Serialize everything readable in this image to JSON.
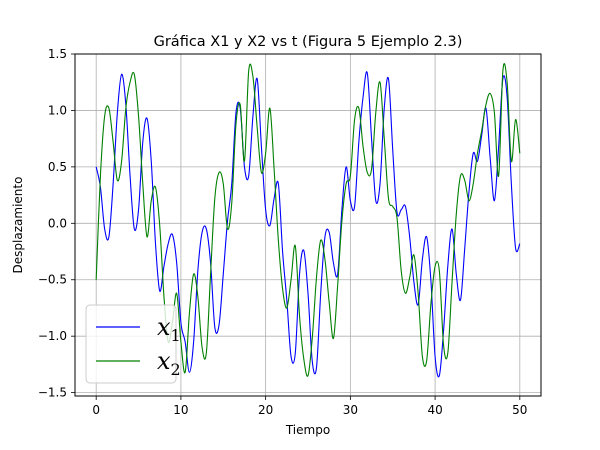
{
  "chart_data": {
    "type": "line",
    "title": "Gráfica X1 y X2 vs t (Figura 5 Ejemplo 2.3)",
    "xlabel": "Tiempo",
    "ylabel": "Desplazamiento",
    "xlim": [
      -2.5,
      52.5
    ],
    "ylim": [
      -1.53,
      1.5
    ],
    "x_ticks": [
      0,
      10,
      20,
      30,
      40,
      50
    ],
    "x_tick_labels": [
      "0",
      "10",
      "20",
      "30",
      "40",
      "50"
    ],
    "y_ticks": [
      -1.5,
      -1.0,
      -0.5,
      0.0,
      0.5,
      1.0,
      1.5
    ],
    "y_tick_labels": [
      "−1.5",
      "−1.0",
      "−0.5",
      "0.0",
      "0.5",
      "1.0",
      "1.5"
    ],
    "grid": true,
    "legend_position": "lower-left",
    "series": [
      {
        "name": "x1",
        "legend_main": "x",
        "legend_sub": "1",
        "color": "#0000ff",
        "x": [
          0,
          0.5,
          1,
          1.5,
          2,
          2.5,
          3,
          3.5,
          4,
          4.5,
          5,
          5.5,
          6,
          6.5,
          7,
          7.5,
          8,
          8.5,
          9,
          9.5,
          10,
          10.5,
          11,
          11.5,
          12,
          12.5,
          13,
          13.5,
          14,
          14.5,
          15,
          15.5,
          16,
          16.5,
          17,
          17.5,
          18,
          18.5,
          19,
          19.5,
          20,
          20.5,
          21,
          21.5,
          22,
          22.5,
          23,
          23.5,
          24,
          24.5,
          25,
          25.5,
          26,
          26.5,
          27,
          27.5,
          28,
          28.5,
          29,
          29.5,
          30,
          30.5,
          31,
          31.5,
          32,
          32.5,
          33,
          33.5,
          34,
          34.5,
          35,
          35.5,
          36,
          36.5,
          37,
          37.5,
          38,
          38.5,
          39,
          39.5,
          40,
          40.5,
          41,
          41.5,
          42,
          42.5,
          43,
          43.5,
          44,
          44.5,
          45,
          45.5,
          46,
          46.5,
          47,
          47.5,
          48,
          48.5,
          49,
          49.5,
          50
        ],
        "y": [
          0.5,
          0.32,
          -0.05,
          -0.12,
          0.35,
          0.98,
          1.32,
          1.05,
          0.42,
          -0.05,
          0.12,
          0.72,
          0.93,
          0.55,
          -0.18,
          -0.6,
          -0.38,
          -0.18,
          -0.1,
          -0.35,
          -0.88,
          -1.05,
          -1.32,
          -1.05,
          -0.42,
          -0.08,
          -0.05,
          -0.35,
          -0.92,
          -0.9,
          -0.45,
          0.02,
          0.35,
          0.98,
          1.02,
          0.5,
          0.42,
          0.95,
          1.28,
          0.68,
          0.12,
          -0.02,
          0.22,
          0.35,
          -0.25,
          -0.68,
          -1.18,
          -1.15,
          -0.45,
          -0.24,
          -0.62,
          -1.22,
          -1.28,
          -0.62,
          -0.12,
          -0.08,
          -0.35,
          -0.45,
          0.12,
          0.5,
          0.2,
          0.15,
          0.72,
          1.12,
          1.33,
          0.75,
          0.2,
          0.35,
          1.02,
          1.28,
          0.65,
          0.1,
          0.12,
          0.15,
          -0.12,
          -0.52,
          -0.72,
          -0.32,
          -0.12,
          -0.5,
          -1.18,
          -1.35,
          -0.95,
          -0.38,
          -0.05,
          -0.45,
          -0.68,
          -0.22,
          0.28,
          0.62,
          0.55,
          0.78,
          1.02,
          0.58,
          0.2,
          0.68,
          1.28,
          1.12,
          0.35,
          -0.22,
          -0.18
        ]
      },
      {
        "name": "x2",
        "legend_main": "x",
        "legend_sub": "2",
        "color": "#008000",
        "x": [
          0,
          0.5,
          1,
          1.5,
          2,
          2.5,
          3,
          3.5,
          4,
          4.5,
          5,
          5.5,
          6,
          6.5,
          7,
          7.5,
          8,
          8.5,
          9,
          9.5,
          10,
          10.5,
          11,
          11.5,
          12,
          12.5,
          13,
          13.5,
          14,
          14.5,
          15,
          15.5,
          16,
          16.5,
          17,
          17.5,
          18,
          18.5,
          19,
          19.5,
          20,
          20.5,
          21,
          21.5,
          22,
          22.5,
          23,
          23.5,
          24,
          24.5,
          25,
          25.5,
          26,
          26.5,
          27,
          27.5,
          28,
          28.5,
          29,
          29.5,
          30,
          30.5,
          31,
          31.5,
          32,
          32.5,
          33,
          33.5,
          34,
          34.5,
          35,
          35.5,
          36,
          36.5,
          37,
          37.5,
          38,
          38.5,
          39,
          39.5,
          40,
          40.5,
          41,
          41.5,
          42,
          42.5,
          43,
          43.5,
          44,
          44.5,
          45,
          45.5,
          46,
          46.5,
          47,
          47.5,
          48,
          48.5,
          49,
          49.5,
          50
        ],
        "y": [
          -0.5,
          0.42,
          0.95,
          1.02,
          0.72,
          0.38,
          0.55,
          1.02,
          1.25,
          1.32,
          0.95,
          0.35,
          -0.12,
          0.2,
          0.32,
          -0.02,
          -0.65,
          -1.05,
          -0.88,
          -0.62,
          -1.05,
          -1.32,
          -0.8,
          -0.45,
          -0.65,
          -1.1,
          -1.15,
          -0.45,
          0.22,
          0.45,
          0.35,
          -0.05,
          0.18,
          0.88,
          1.05,
          0.55,
          1.35,
          1.3,
          0.85,
          0.45,
          0.62,
          1.02,
          0.48,
          -0.15,
          -0.58,
          -0.75,
          -0.5,
          -0.2,
          -0.82,
          -1.2,
          -1.35,
          -1.02,
          -0.48,
          -0.15,
          -0.32,
          -0.7,
          -1.02,
          -0.55,
          0.02,
          0.35,
          0.42,
          0.92,
          1.02,
          0.68,
          0.45,
          0.48,
          0.98,
          1.25,
          0.75,
          0.22,
          0.15,
          0.05,
          -0.42,
          -0.62,
          -0.48,
          -0.28,
          -0.62,
          -1.18,
          -1.22,
          -0.72,
          -0.38,
          -0.42,
          -1.08,
          -1.15,
          -0.52,
          0.08,
          0.42,
          0.38,
          0.2,
          0.35,
          0.62,
          0.82,
          1.05,
          1.15,
          0.98,
          0.42,
          1.35,
          1.25,
          0.55,
          0.92,
          0.62
        ]
      }
    ]
  }
}
